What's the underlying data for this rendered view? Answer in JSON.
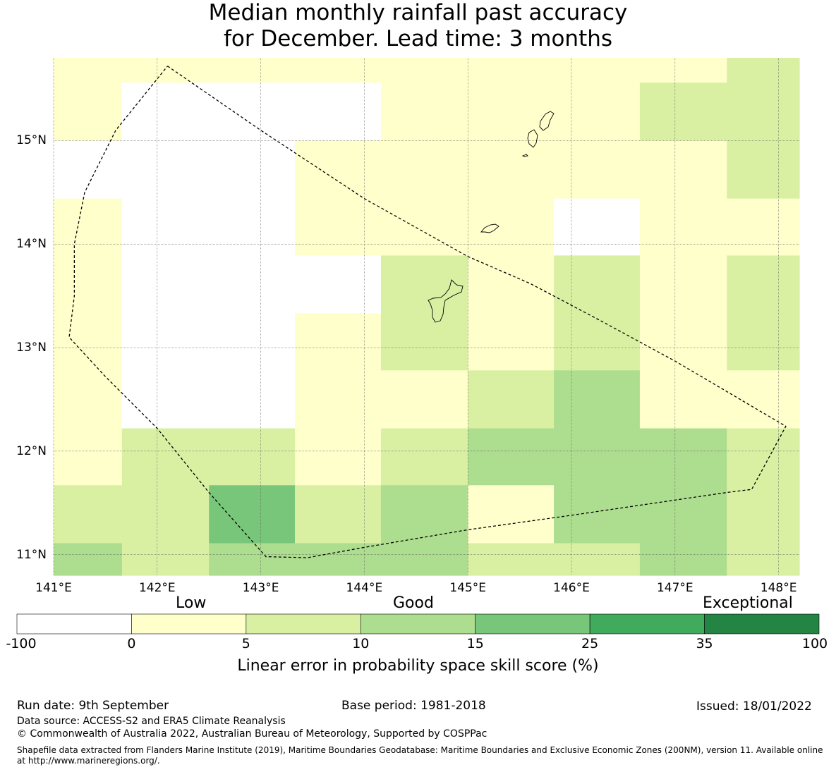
{
  "title": {
    "line1": "Median monthly rainfall past accuracy",
    "line2": "for December. Lead time: 3 months"
  },
  "chart_data": {
    "type": "heatmap",
    "title": "Median monthly rainfall past accuracy for December. Lead time: 3 months",
    "x_ticks": [
      "141°E",
      "142°E",
      "143°E",
      "144°E",
      "145°E",
      "146°E",
      "147°E",
      "148°E"
    ],
    "y_ticks": [
      "15°N",
      "14°N",
      "13°N",
      "12°N",
      "11°N"
    ],
    "xlim": [
      141.0,
      148.2
    ],
    "ylim": [
      10.8,
      15.8
    ],
    "grid": true,
    "col_edges": [
      141.0,
      141.66,
      142.5,
      143.33,
      144.16,
      145.0,
      145.83,
      146.66,
      147.5,
      148.2
    ],
    "row_edges": [
      15.8,
      15.56,
      15.0,
      14.44,
      13.89,
      13.33,
      12.78,
      12.22,
      11.67,
      11.11,
      10.8
    ],
    "bin_legend": "0=no data, 1=0-5, 2=5-10, 3=10-15, 4=15-25",
    "bins": [
      [
        1,
        1,
        1,
        1,
        1,
        1,
        1,
        1,
        2
      ],
      [
        1,
        0,
        0,
        0,
        1,
        1,
        1,
        2,
        2
      ],
      [
        0,
        0,
        0,
        1,
        1,
        1,
        1,
        1,
        2
      ],
      [
        1,
        0,
        0,
        1,
        1,
        1,
        0,
        1,
        1
      ],
      [
        1,
        0,
        0,
        0,
        2,
        1,
        2,
        1,
        2
      ],
      [
        1,
        0,
        0,
        1,
        2,
        1,
        2,
        1,
        2
      ],
      [
        1,
        0,
        0,
        1,
        1,
        2,
        3,
        1,
        1
      ],
      [
        1,
        2,
        2,
        1,
        2,
        3,
        3,
        3,
        2
      ],
      [
        2,
        2,
        4,
        2,
        3,
        1,
        3,
        3,
        2
      ],
      [
        3,
        2,
        3,
        3,
        3,
        2,
        2,
        3,
        2
      ]
    ],
    "region_outline": [
      [
        142.1,
        15.72
      ],
      [
        143.0,
        15.1
      ],
      [
        144.0,
        14.44
      ],
      [
        145.0,
        13.88
      ],
      [
        145.6,
        13.62
      ],
      [
        146.3,
        13.25
      ],
      [
        147.0,
        12.87
      ],
      [
        148.07,
        12.24
      ],
      [
        147.74,
        11.63
      ],
      [
        147.5,
        11.6
      ],
      [
        146.0,
        11.38
      ],
      [
        145.0,
        11.24
      ],
      [
        144.0,
        11.07
      ],
      [
        143.45,
        10.97
      ],
      [
        143.05,
        10.98
      ],
      [
        142.5,
        11.6
      ],
      [
        142.0,
        12.22
      ],
      [
        141.5,
        12.72
      ],
      [
        141.15,
        13.1
      ],
      [
        141.2,
        13.5
      ],
      [
        141.2,
        14.0
      ],
      [
        141.3,
        14.5
      ],
      [
        141.6,
        15.1
      ],
      [
        142.1,
        15.72
      ]
    ]
  },
  "colorbar": {
    "categories": [
      "Low",
      "Good",
      "Exceptional"
    ],
    "ticks": [
      "-100",
      "0",
      "5",
      "10",
      "15",
      "25",
      "35",
      "100"
    ],
    "colors": [
      "#ffffff",
      "#ffffcc",
      "#d9f0a3",
      "#addd8e",
      "#78c679",
      "#41ab5d",
      "#238443"
    ],
    "label": "Linear error in probability space skill score (%)"
  },
  "footer": {
    "run_date": "Run date: 9th September",
    "base_period": "Base period: 1981-2018",
    "issued": "Issued: 18/01/2022",
    "data_source": "Data source: ACCESS-S2 and ERA5 Climate Reanalysis",
    "copyright": "© Commonwealth of Australia 2022, Australian Bureau of Meteorology, Supported by COSPPac",
    "shapefile": "Shapefile data extracted from Flanders Marine Institute (2019), Maritime Boundaries Geodatabase: Maritime Boundaries and Exclusive Economic Zones (200NM), version 11. Available online at http://www.marineregions.org/."
  }
}
